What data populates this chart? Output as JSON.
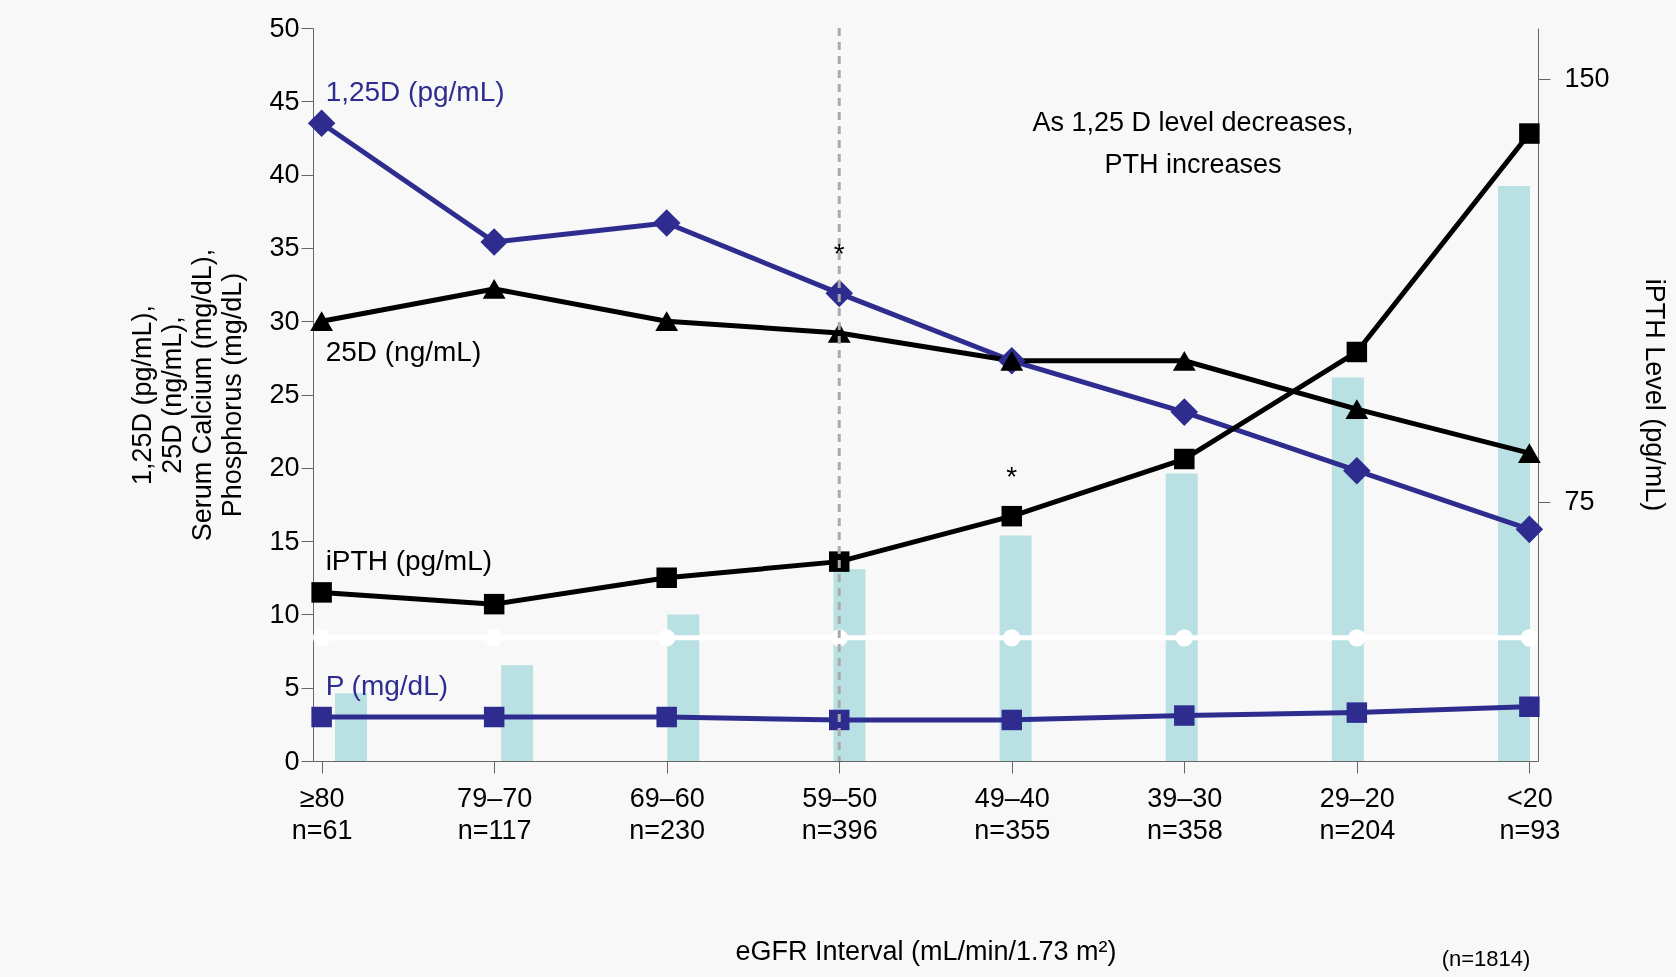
{
  "chart_data": {
    "type": "line",
    "xlabel": "eGFR Interval (mL/min/1.73 m²)",
    "ylabel": "1,25D (pg/mL),\n25D (ng/mL),\nSerum Calcium (mg/dL),\nPhosphorus (mg/dL)",
    "y2label": "iPTH Level (pg/mL)",
    "categories": [
      "≥80 n=61",
      "79–70 n=117",
      "69–60 n=230",
      "59–50 n=396",
      "49–40 n=355",
      "39–30 n=358",
      "29–20 n=204",
      "<20 n=93"
    ],
    "series": [
      {
        "name": "1,25D (pg/mL)",
        "color": "#2e2d8f",
        "marker": "diamond",
        "values": [
          43.5,
          35.4,
          36.7,
          31.9,
          27.3,
          23.8,
          19.8,
          15.8
        ]
      },
      {
        "name": "25D (ng/mL)",
        "color": "#000000",
        "marker": "triangle",
        "values": [
          30.0,
          32.2,
          30.0,
          29.2,
          27.3,
          27.3,
          24.0,
          21.0
        ]
      },
      {
        "name": "iPTH (pg/mL)",
        "color": "#000000",
        "marker": "square",
        "values": [
          11.5,
          10.7,
          12.5,
          13.6,
          16.7,
          20.6,
          27.9,
          42.8
        ]
      },
      {
        "name": "P (mg/dL)",
        "color": "#2e2d8f",
        "marker": "square",
        "values": [
          3.0,
          3.0,
          3.0,
          2.8,
          2.8,
          3.1,
          3.3,
          3.7
        ]
      },
      {
        "color": "#ffffff",
        "marker": "circle",
        "values": [
          8.4,
          8.4,
          8.4,
          8.4,
          8.4,
          8.4,
          8.4,
          8.4
        ]
      },
      {
        "type": "bar",
        "axis": "y2",
        "color": "#b9e0e3",
        "values": [
          41,
          46,
          55,
          63,
          69,
          80,
          97,
          131
        ]
      }
    ],
    "ylim": [
      0,
      50
    ],
    "yticks": [
      0,
      5,
      10,
      15,
      20,
      25,
      30,
      35,
      40,
      45,
      50
    ],
    "y2lim": [
      29,
      159
    ],
    "y2ticks": [
      75,
      150
    ],
    "ref_lines": [
      {
        "axis": "x",
        "value": "59–50 n=396",
        "color": "#aaaaaa",
        "line_style": "dashed"
      }
    ],
    "annotations": [
      "As 1,25 D level decreases,\nPTH increases",
      "(n=1814)",
      {
        "text": "*",
        "x": "59–50 n=396",
        "y": 31.9
      },
      {
        "text": "*",
        "x": "49–40 n=355",
        "y": 16.7
      }
    ],
    "grid": false
  }
}
